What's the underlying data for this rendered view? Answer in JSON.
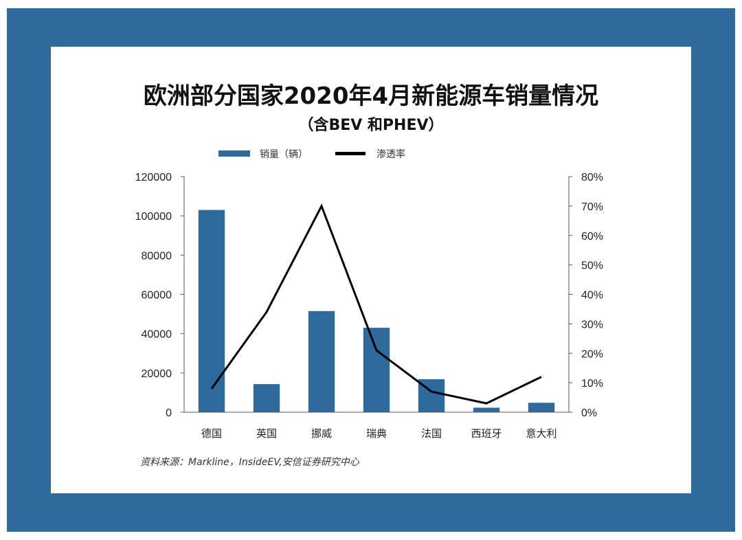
{
  "title": "欧洲部分国家2020年4月新能源车销量情况",
  "subtitle": "（含BEV 和PHEV）",
  "source": "资料来源：Markline，InsideEV,安信证券研究中心",
  "colors": {
    "frame": "#2f6a9c",
    "bar": "#2f6a9c",
    "line": "#000000"
  },
  "chart_data": {
    "type": "bar+line",
    "categories": [
      "德国",
      "英国",
      "挪威",
      "瑞典",
      "法国",
      "西班牙",
      "意大利"
    ],
    "series": [
      {
        "name": "销量（辆）",
        "type": "bar",
        "axis": "left",
        "values": [
          103000,
          14300,
          51500,
          43000,
          16800,
          2300,
          4800
        ]
      },
      {
        "name": "渗透率",
        "type": "line",
        "axis": "right",
        "values": [
          0.08,
          0.34,
          0.7,
          0.21,
          0.07,
          0.03,
          0.12
        ]
      }
    ],
    "y_left": {
      "min": 0,
      "max": 120000,
      "ticks": [
        0,
        20000,
        40000,
        60000,
        80000,
        100000,
        120000
      ]
    },
    "y_right": {
      "min": 0,
      "max": 0.8,
      "ticks": [
        "0%",
        "10%",
        "20%",
        "30%",
        "40%",
        "50%",
        "60%",
        "70%",
        "80%"
      ]
    },
    "legend_position": "top"
  }
}
